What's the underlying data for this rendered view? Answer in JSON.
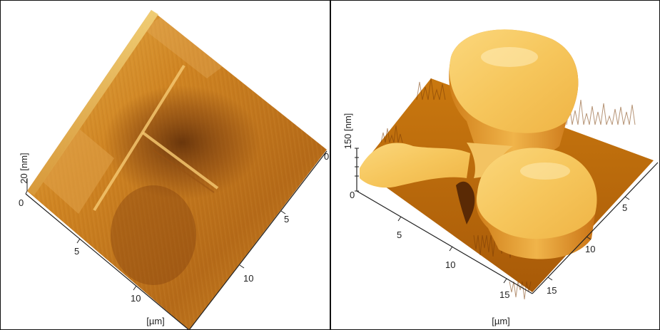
{
  "panels": [
    {
      "id": "left",
      "z_label": "20 [nm]",
      "x_label": "[µm]",
      "z_ticks": [
        "0"
      ],
      "x_ticks": [
        "0",
        "5",
        "10"
      ],
      "y_ticks": [
        "0",
        "5",
        "10"
      ]
    },
    {
      "id": "right",
      "z_label": "150 [nm]",
      "x_label": "[µm]",
      "z_ticks": [
        "0"
      ],
      "x_ticks": [
        "5",
        "10",
        "15"
      ],
      "y_ticks": [
        "5",
        "10",
        "15"
      ]
    }
  ]
}
